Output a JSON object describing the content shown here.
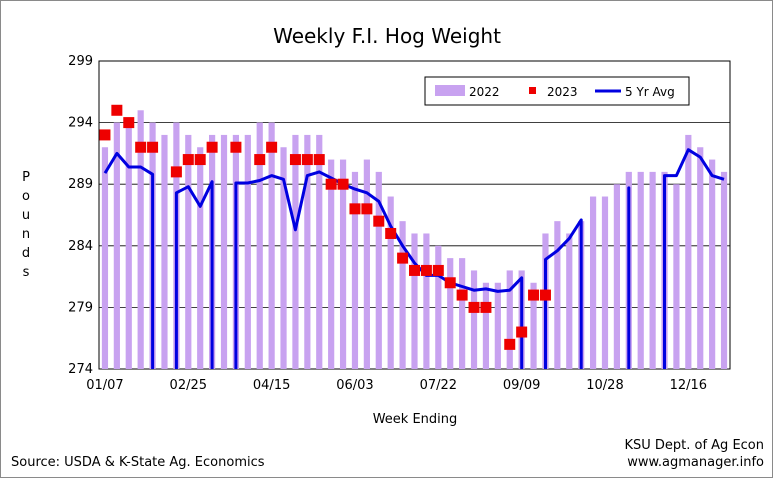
{
  "chart_data": {
    "type": "bar",
    "title": "Weekly F.I. Hog Weight",
    "xlabel": "Week Ending",
    "ylabel": "Pounds",
    "ylim": [
      274,
      299
    ],
    "yticks": [
      "274",
      "279",
      "284",
      "289",
      "294",
      "299"
    ],
    "xticks": [
      "01/07",
      "02/25",
      "04/15",
      "06/03",
      "07/22",
      "09/09",
      "10/28",
      "12/16"
    ],
    "grid": true,
    "legend_position": "top-right",
    "series": [
      {
        "name": "2022",
        "type": "bar",
        "color": "#c8a2f0",
        "values": [
          292,
          294,
          294,
          295,
          294,
          293,
          294,
          293,
          292,
          293,
          293,
          293,
          293,
          294,
          294,
          292,
          293,
          293,
          293,
          291,
          291,
          290,
          291,
          290,
          288,
          286,
          285,
          285,
          284,
          283,
          283,
          282,
          281,
          281,
          282,
          282,
          281,
          285,
          286,
          285,
          286,
          288,
          288,
          289,
          290,
          290,
          290,
          290,
          289,
          293,
          292,
          291,
          290
        ]
      },
      {
        "name": "2023",
        "type": "marker",
        "color": "#ee0000",
        "values": [
          293,
          295,
          294,
          292,
          292,
          null,
          290,
          291,
          291,
          292,
          null,
          292,
          null,
          291,
          292,
          null,
          291,
          291,
          291,
          289,
          289,
          287,
          287,
          286,
          285,
          283,
          282,
          282,
          282,
          281,
          280,
          279,
          279,
          null,
          276,
          277,
          280,
          280,
          null,
          null,
          null,
          null,
          null,
          null,
          null,
          null,
          null,
          null,
          null,
          null,
          null,
          null,
          null
        ]
      },
      {
        "name": "5 Yr Avg",
        "type": "line",
        "color": "#0000e0",
        "values": [
          289.9,
          291.5,
          290.4,
          290.4,
          289.8,
          null,
          288.3,
          288.8,
          287.2,
          289.2,
          null,
          289.1,
          289.1,
          289.3,
          289.7,
          289.4,
          285.3,
          289.7,
          290,
          289.5,
          289,
          288.6,
          288.3,
          287.6,
          285.6,
          284,
          282.6,
          281.6,
          281.6,
          281,
          280.7,
          280.4,
          280.5,
          280.3,
          280.4,
          281.4,
          null,
          282.9,
          283.6,
          284.6,
          286.1,
          null,
          null,
          null,
          288.7,
          null,
          null,
          289.7,
          289.7,
          291.8,
          291.2,
          289.7,
          289.4
        ]
      }
    ]
  },
  "footer": {
    "source": "Source:  USDA & K-State Ag. Economics",
    "credit_line1": "KSU Dept. of Ag Econ",
    "credit_line2": "www.agmanager.info"
  }
}
